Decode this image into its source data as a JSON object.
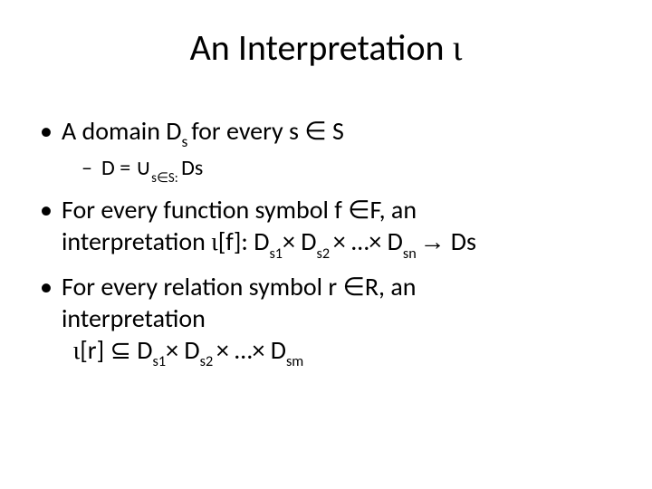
{
  "slide": {
    "title_prefix": "An Interpretation ",
    "title_iota": "ι",
    "title_fontsize": 40,
    "title_color": "#000000",
    "body_fontsize_l1": 28,
    "body_fontsize_l2": 24,
    "background_color": "#ffffff",
    "text_color": "#000000",
    "bullets": {
      "b1": {
        "pre": "A domain D",
        "sub": "s ",
        "post": "for every s ∈ S",
        "sub_bullet": {
          "pre": "D = ∪",
          "sub": "s∈S: ",
          "post": "Ds"
        }
      },
      "b2": {
        "line1_pre": "For every function symbol f ∈F, an",
        "line2_pre": "interpretation ",
        "iota": "ι",
        "bracket_f": "[f]: D",
        "s1": "s1",
        "times1": "× D",
        "s2": "s2 ",
        "times2": "× …× D",
        "sn": "sn ",
        "arrow": "→",
        "tail": " Ds"
      },
      "b3": {
        "line1_pre": "For every relation symbol r ∈R, an",
        "line2_pre": "interpretation",
        "line3_indent": "  ",
        "iota": "ι",
        "bracket_r": "[r] ⊆ D",
        "s1": "s1",
        "times1": "× D",
        "s2": "s2 ",
        "times2": "× …× D",
        "sm": "sm"
      }
    }
  }
}
